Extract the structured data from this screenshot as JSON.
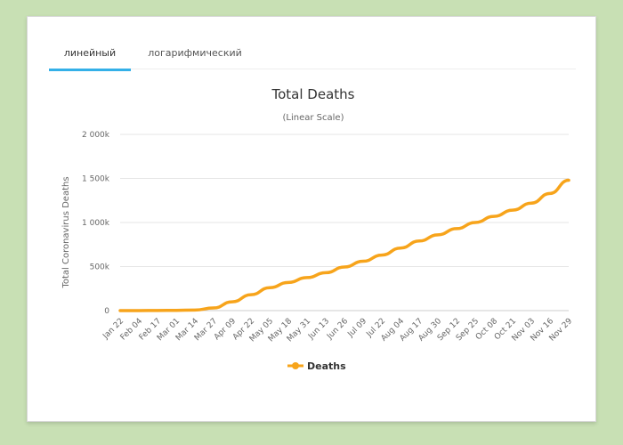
{
  "tabs": [
    {
      "label": "линейный",
      "active": true
    },
    {
      "label": "логарифмический",
      "active": false
    }
  ],
  "colors": {
    "accent": "#34b0e8",
    "series": "#f7a41b"
  },
  "chart_data": {
    "type": "line",
    "title": "Total Deaths",
    "subtitle": "(Linear Scale)",
    "ylabel": "Total Coronavirus Deaths",
    "ylim": [
      0,
      2000000
    ],
    "yticks": [
      {
        "value": 0,
        "label": "0"
      },
      {
        "value": 500000,
        "label": "500k"
      },
      {
        "value": 1000000,
        "label": "1 000k"
      },
      {
        "value": 1500000,
        "label": "1 500k"
      },
      {
        "value": 2000000,
        "label": "2 000k"
      }
    ],
    "xticks": [
      "Jan 22",
      "Feb 04",
      "Feb 17",
      "Mar 01",
      "Mar 14",
      "Mar 27",
      "Apr 09",
      "Apr 22",
      "May 05",
      "May 18",
      "May 31",
      "Jun 13",
      "Jun 26",
      "Jul 09",
      "Jul 22",
      "Aug 04",
      "Aug 17",
      "Aug 30",
      "Sep 12",
      "Sep 25",
      "Oct 08",
      "Oct 21",
      "Nov 03",
      "Nov 16",
      "Nov 29"
    ],
    "legend_position": "bottom",
    "series": [
      {
        "name": "Deaths",
        "x": [
          "Jan 22",
          "Feb 04",
          "Feb 17",
          "Mar 01",
          "Mar 14",
          "Mar 27",
          "Apr 09",
          "Apr 22",
          "May 05",
          "May 18",
          "May 31",
          "Jun 13",
          "Jun 26",
          "Jul 09",
          "Jul 22",
          "Aug 04",
          "Aug 17",
          "Aug 30",
          "Sep 12",
          "Sep 25",
          "Oct 08",
          "Oct 21",
          "Nov 03",
          "Nov 16",
          "Nov 29"
        ],
        "values": [
          17,
          490,
          1870,
          3000,
          6000,
          30000,
          100000,
          180000,
          260000,
          320000,
          375000,
          430000,
          495000,
          560000,
          630000,
          710000,
          790000,
          860000,
          930000,
          1000000,
          1070000,
          1140000,
          1220000,
          1330000,
          1480000
        ]
      }
    ]
  }
}
